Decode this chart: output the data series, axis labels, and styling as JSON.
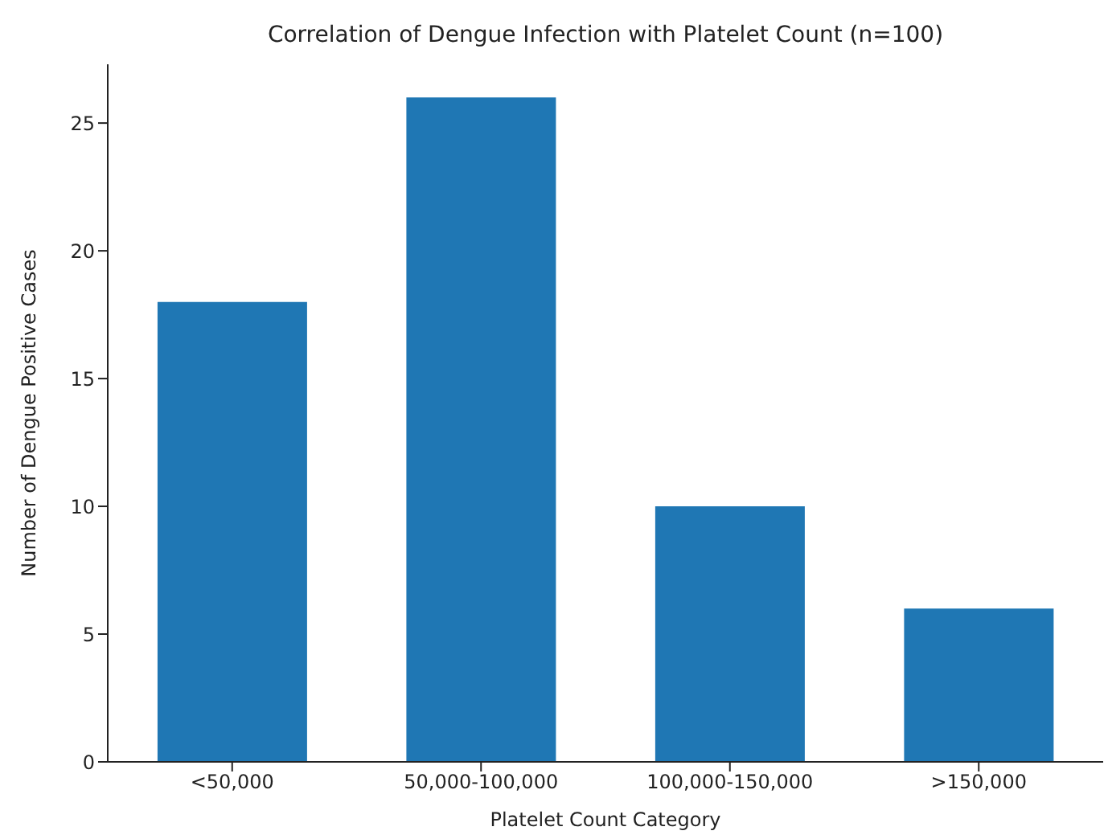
{
  "chart_data": {
    "type": "bar",
    "title": "Correlation of Dengue Infection with Platelet Count (n=100)",
    "xlabel": "Platelet Count Category",
    "ylabel": "Number of Dengue Positive Cases",
    "categories": [
      "<50,000",
      "50,000-100,000",
      "100,000-150,000",
      ">150,000"
    ],
    "values": [
      18,
      26,
      10,
      6
    ],
    "color": "#1f77b4",
    "ylim": [
      0,
      27.3
    ],
    "yticks": [
      0,
      5,
      10,
      15,
      20,
      25
    ],
    "grid": false,
    "legend": false
  }
}
